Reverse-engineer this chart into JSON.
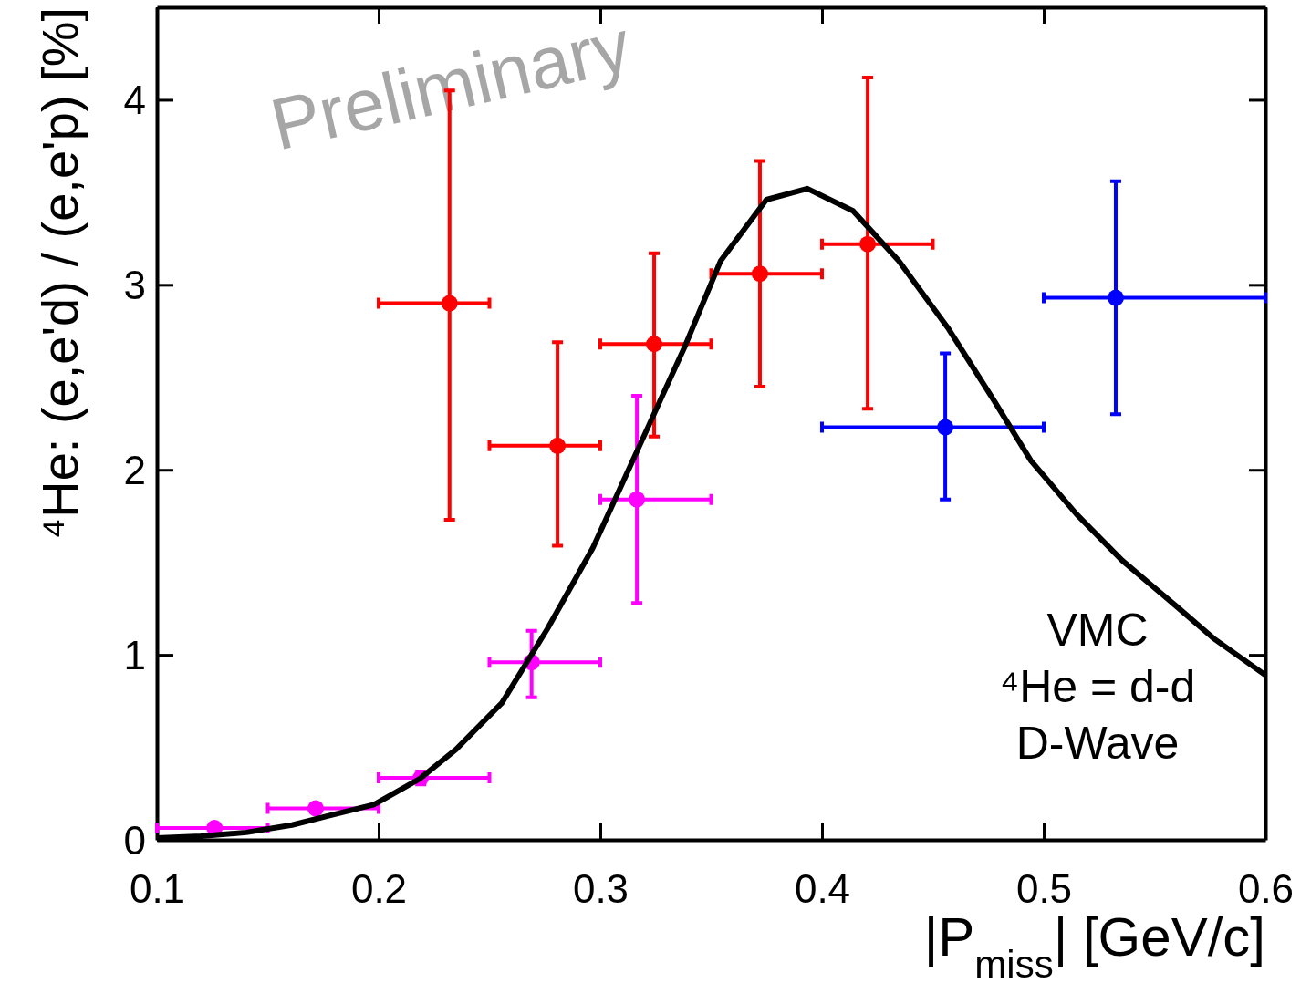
{
  "chart_data": {
    "type": "scatter",
    "xlabel": "|P$_{miss}$| [GeV/c]",
    "ylabel": "⁴He: (e,e'd) / (e,e'p) [%]",
    "xlim": [
      0.1,
      0.6
    ],
    "ylim": [
      0,
      4.5
    ],
    "xticks": [
      0.1,
      0.2,
      0.3,
      0.4,
      0.5,
      0.6
    ],
    "yticks": [
      0,
      1,
      2,
      3,
      4
    ],
    "grid": false,
    "marker": "circle",
    "annotations": [
      "Preliminary"
    ],
    "series": [
      {
        "color": "#ff00ff",
        "x": [
          0.126,
          0.1716,
          0.219,
          0.269,
          0.3165
        ],
        "values": [
          0.064,
          0.17,
          0.335,
          0.96,
          1.84
        ],
        "errors": [
          null,
          null,
          [
            0.3,
            0.37
          ],
          [
            0.77,
            1.13
          ],
          [
            1.28,
            2.4
          ]
        ],
        "xerrors": [
          [
            0.1,
            0.15
          ],
          [
            0.15,
            0.2
          ],
          [
            0.2,
            0.25
          ],
          [
            0.25,
            0.3
          ],
          [
            0.3,
            0.35
          ]
        ]
      },
      {
        "color": "#ff0000",
        "x": [
          0.232,
          0.2807,
          0.3243,
          0.372,
          0.4206
        ],
        "values": [
          2.9,
          2.13,
          2.68,
          3.06,
          3.22
        ],
        "errors": [
          [
            1.73,
            4.05
          ],
          [
            1.59,
            2.69
          ],
          [
            2.18,
            3.17
          ],
          [
            2.45,
            3.67
          ],
          [
            2.33,
            4.12
          ]
        ],
        "xerrors": [
          [
            0.2,
            0.25
          ],
          [
            0.25,
            0.3
          ],
          [
            0.3,
            0.35
          ],
          [
            0.35,
            0.4
          ],
          [
            0.4,
            0.45
          ]
        ]
      },
      {
        "color": "#0000ff",
        "x": [
          0.4556,
          0.5325
        ],
        "values": [
          2.23,
          2.93
        ],
        "errors": [
          [
            1.84,
            2.63
          ],
          [
            2.3,
            3.56
          ]
        ],
        "xerrors": [
          [
            0.4,
            0.5
          ],
          [
            0.5,
            0.6
          ]
        ]
      },
      {
        "type": "line",
        "name": "VMC\n⁴He = d-d\nD-Wave",
        "color": "#000000",
        "marker": "none",
        "line_style": "solid",
        "x": [
          0.1,
          0.1198,
          0.1403,
          0.1609,
          0.1774,
          0.1979,
          0.2185,
          0.235,
          0.2556,
          0.2761,
          0.2967,
          0.3173,
          0.3379,
          0.3543,
          0.3749,
          0.3934,
          0.414,
          0.4346,
          0.4572,
          0.4778,
          0.4942,
          0.5148,
          0.5354,
          0.5601,
          0.5765,
          0.6
        ],
        "values": [
          0.01,
          0.02,
          0.04,
          0.08,
          0.13,
          0.19,
          0.33,
          0.49,
          0.74,
          1.14,
          1.58,
          2.12,
          2.66,
          3.13,
          3.46,
          3.52,
          3.4,
          3.13,
          2.76,
          2.37,
          2.05,
          1.76,
          1.51,
          1.26,
          1.09,
          0.89
        ]
      }
    ]
  }
}
